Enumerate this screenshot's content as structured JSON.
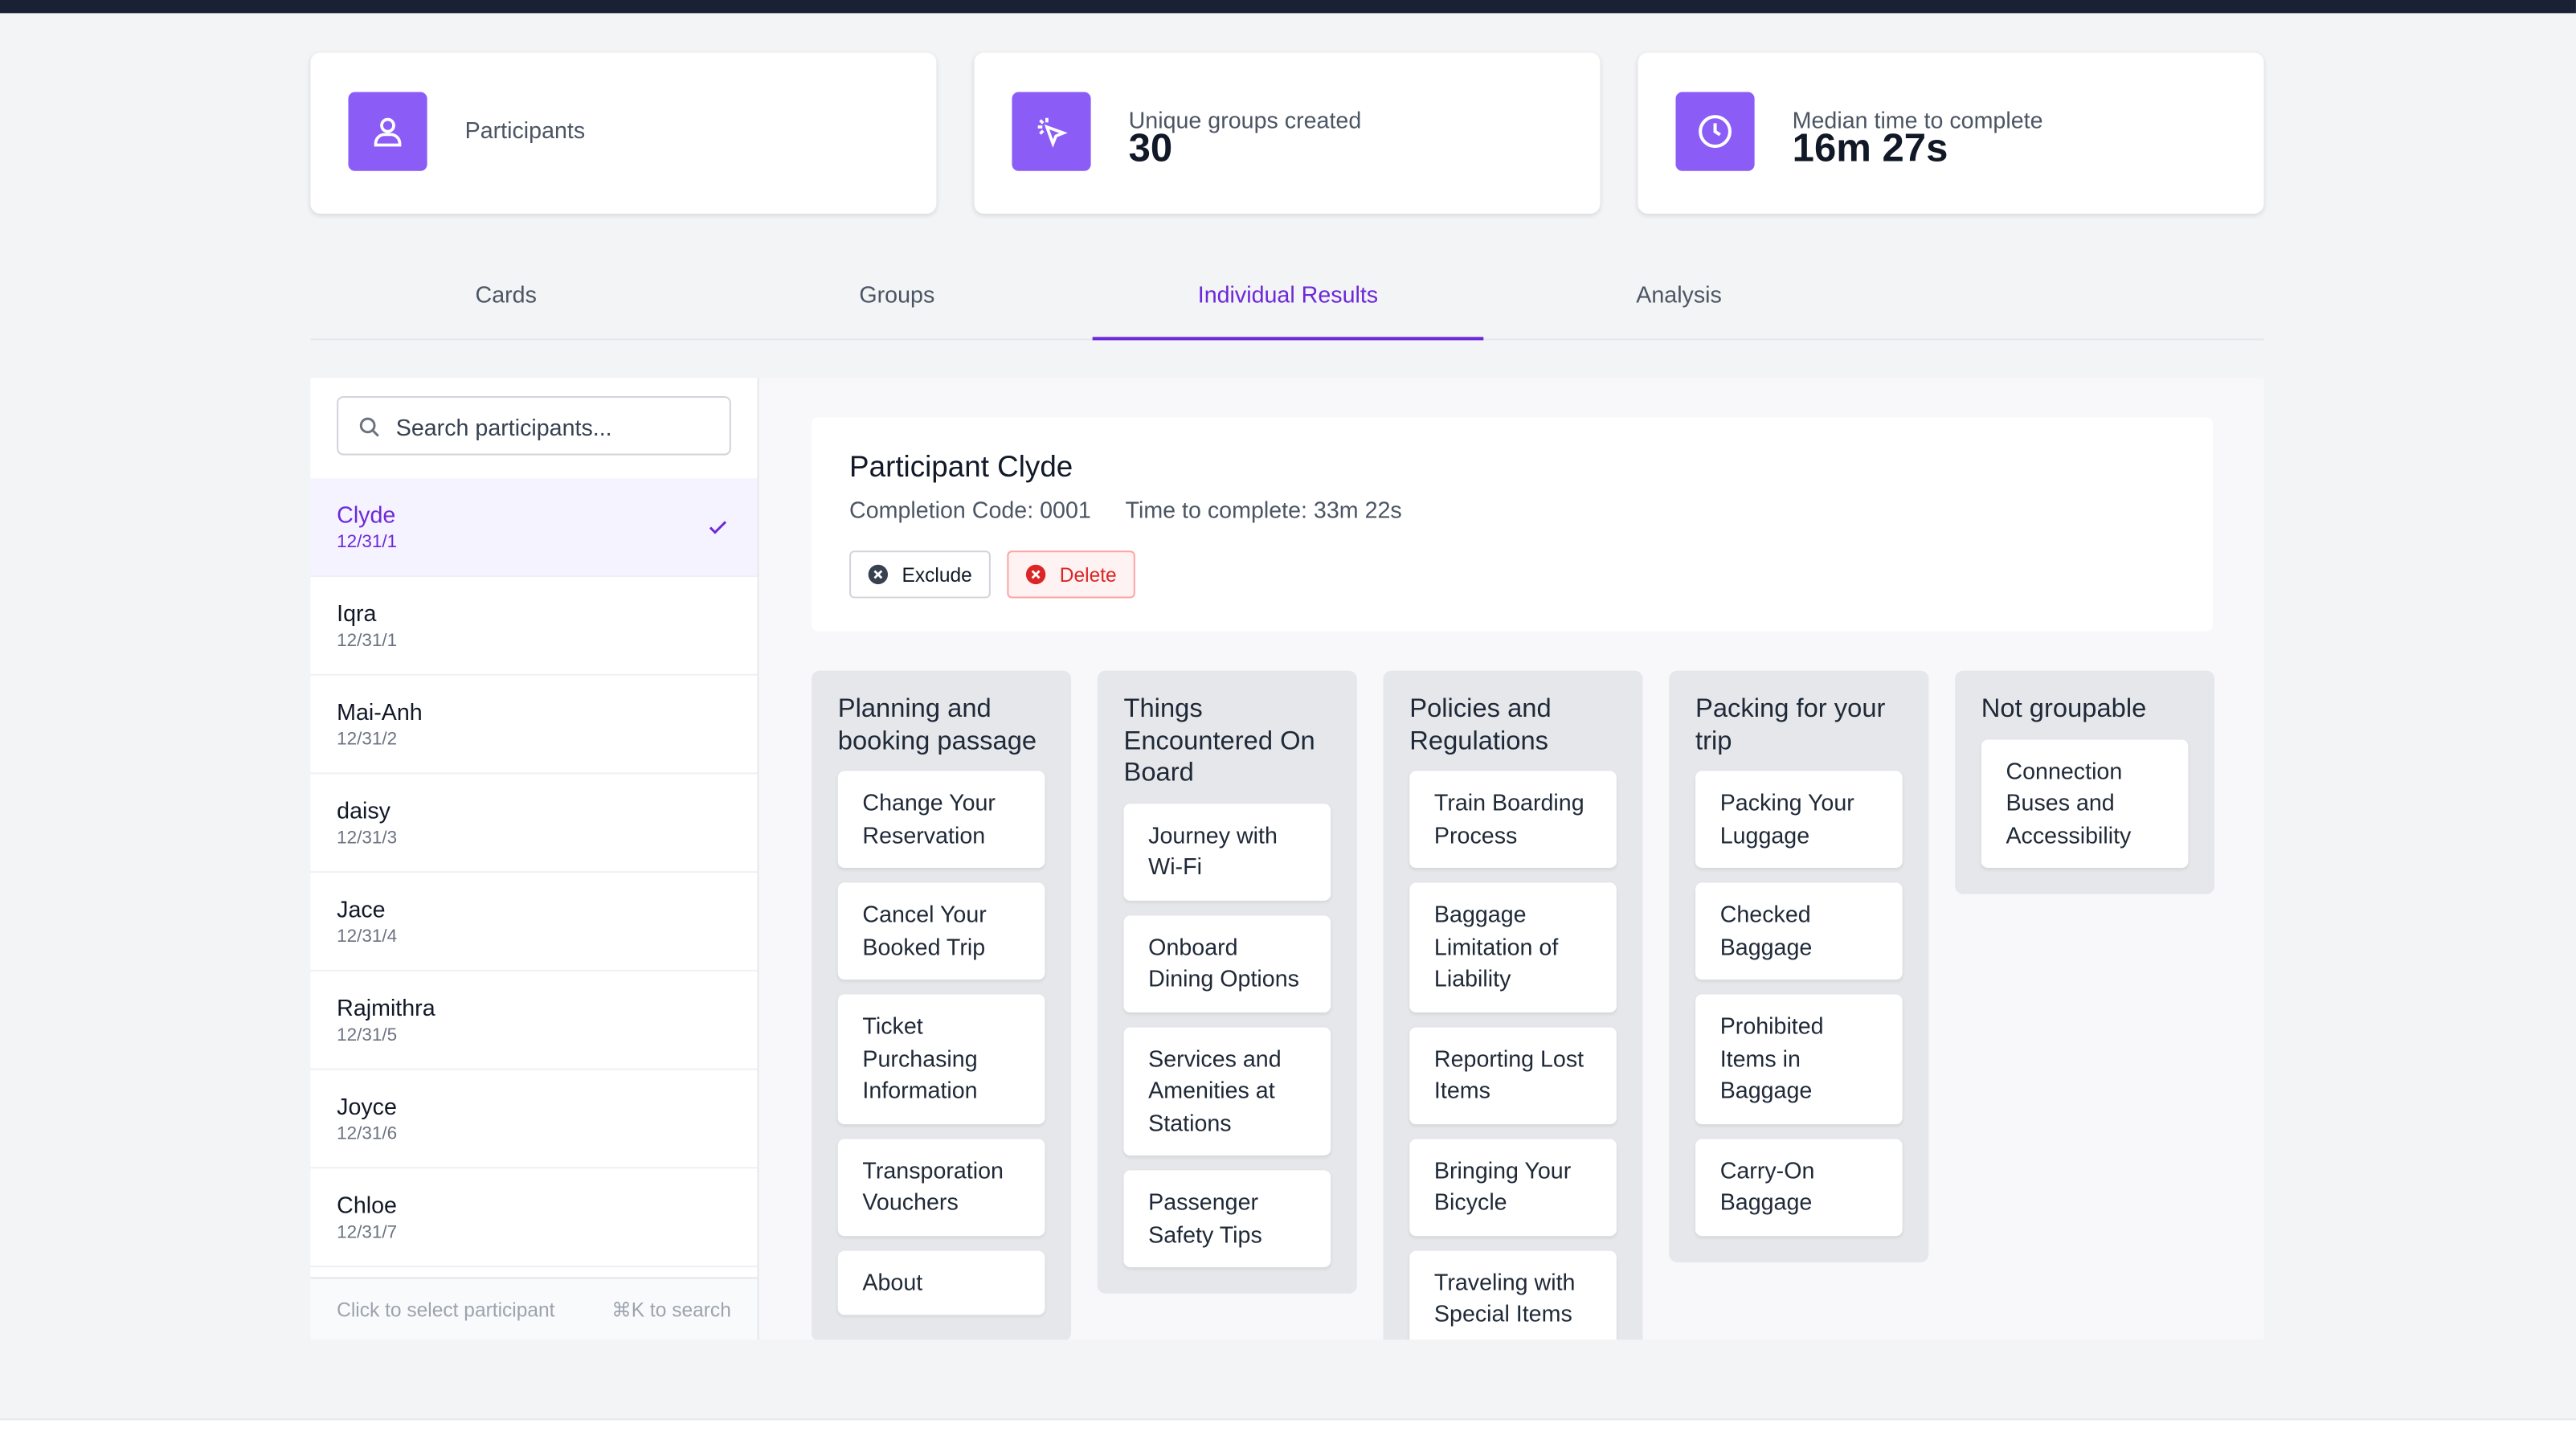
{
  "stats": [
    {
      "label": "Participants"
    },
    {
      "label": "Unique groups created",
      "value": "30"
    },
    {
      "label": "Median time to complete",
      "value": "16m 27s"
    }
  ],
  "tabs": [
    "Cards",
    "Groups",
    "Individual Results",
    "Analysis"
  ],
  "search_placeholder": "Search participants...",
  "participants": [
    {
      "name": "Clyde",
      "date": "12/31/1"
    },
    {
      "name": "Iqra",
      "date": "12/31/1"
    },
    {
      "name": "Mai-Anh",
      "date": "12/31/2"
    },
    {
      "name": "daisy",
      "date": "12/31/3"
    },
    {
      "name": "Jace",
      "date": "12/31/4"
    },
    {
      "name": "Rajmithra",
      "date": "12/31/5"
    },
    {
      "name": "Joyce",
      "date": "12/31/6"
    },
    {
      "name": "Chloe",
      "date": "12/31/7"
    }
  ],
  "list_footer": {
    "hint": "Click to select participant",
    "shortcut": "⌘K to search"
  },
  "detail": {
    "title": "Participant Clyde",
    "completion_code": "Completion Code: 0001",
    "time": "Time to complete: 33m 22s",
    "exclude": "Exclude",
    "delete": "Delete"
  },
  "groups": [
    {
      "name": "Planning and booking passage",
      "cards": [
        "Change Your Reservation",
        "Cancel Your Booked Trip",
        "Ticket Purchasing Information",
        "Transporation Vouchers",
        "About"
      ]
    },
    {
      "name": "Things Encountered On Board",
      "cards": [
        "Journey with Wi-Fi",
        "Onboard Dining Options",
        "Services and Amenities at Stations",
        "Passenger Safety Tips"
      ]
    },
    {
      "name": "Policies and Regulations",
      "cards": [
        "Train Boarding Process",
        "Baggage Limitation of Liability",
        "Reporting Lost Items",
        "Bringing Your Bicycle",
        "Traveling with Special Items"
      ]
    },
    {
      "name": "Packing for your trip",
      "cards": [
        "Packing Your Luggage",
        "Checked Baggage",
        "Prohibited Items in Baggage",
        "Carry-On Baggage"
      ]
    },
    {
      "name": "Not groupable",
      "cards": [
        "Connection Buses and Accessibility"
      ]
    }
  ]
}
